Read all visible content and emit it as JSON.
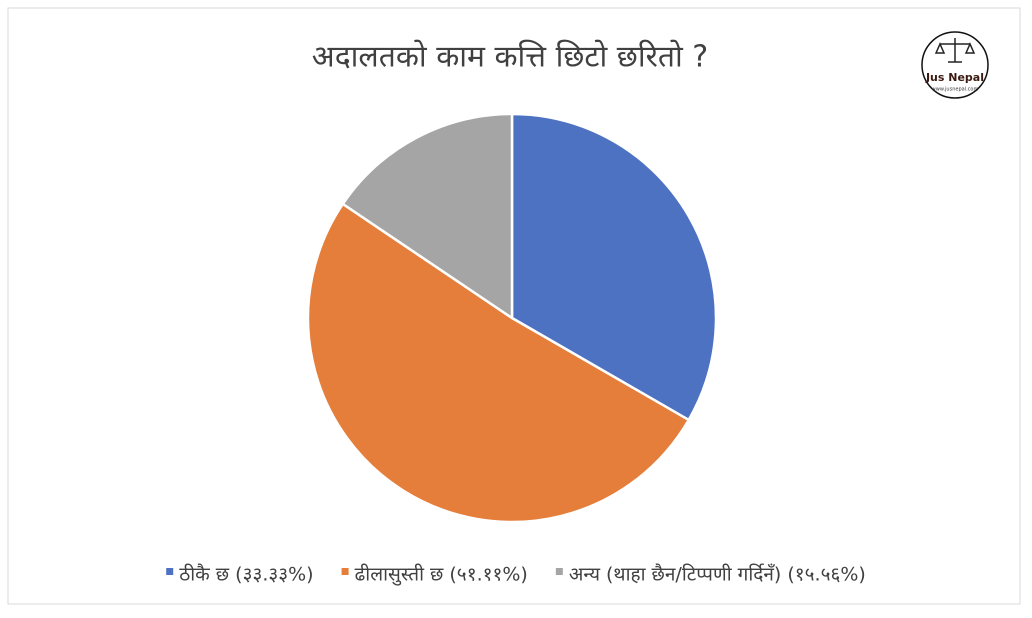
{
  "chart_data": {
    "type": "pie",
    "title": "अदालतको काम कत्ति छिटो छरितो ?",
    "categories": [
      "ठीकै छ (३३.३३%)",
      "ढीलासुस्ती छ (५१.११%)",
      "अन्य (थाहा छैन/टिप्पणी गर्दिनँ) (१५.५६%)"
    ],
    "values": [
      33.33,
      51.11,
      15.56
    ],
    "colors": [
      "#4e72c2",
      "#e57e3b",
      "#a5a5a5"
    ],
    "legend": "bottom"
  },
  "logo": {
    "name": "Jus Nepal",
    "url": "www.jusnepal.com"
  }
}
